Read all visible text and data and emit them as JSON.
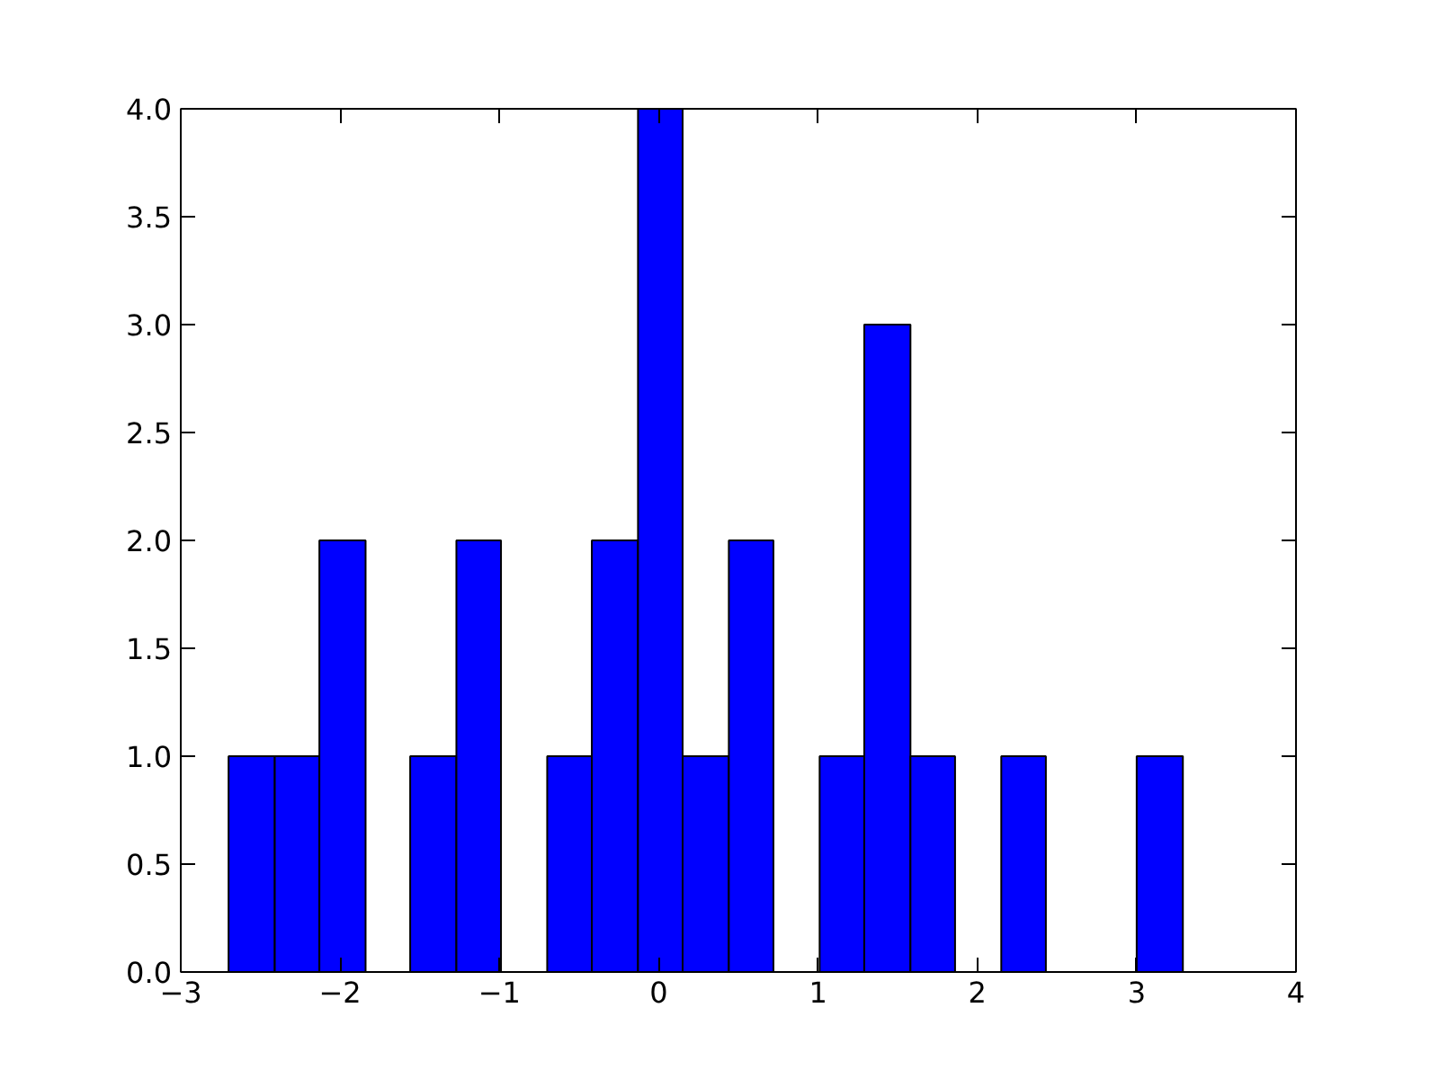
{
  "chart_data": {
    "type": "histogram",
    "bins": [
      -2.7,
      -2.41,
      -2.13,
      -1.84,
      -1.56,
      -1.27,
      -0.99,
      -0.7,
      -0.42,
      -0.13,
      0.15,
      0.44,
      0.72,
      1.01,
      1.29,
      1.58,
      1.86,
      2.15,
      2.43,
      3.0,
      3.29
    ],
    "values": [
      1,
      1,
      2,
      0,
      1,
      2,
      0,
      1,
      2,
      4,
      1,
      2,
      0,
      1,
      3,
      1,
      0,
      1,
      0,
      1
    ],
    "color": "#0000ff",
    "xlim": [
      -3,
      4
    ],
    "xticks": [
      -3,
      -2,
      -1,
      0,
      1,
      2,
      3,
      4
    ],
    "ylim": [
      0,
      4
    ],
    "yticks": [
      {
        "value": 0,
        "label": "0.0"
      },
      {
        "value": 0.5,
        "label": "0.5"
      },
      {
        "value": 1,
        "label": "1.0"
      },
      {
        "value": 1.5,
        "label": "1.5"
      },
      {
        "value": 2,
        "label": "2.0"
      },
      {
        "value": 2.5,
        "label": "2.5"
      },
      {
        "value": 3,
        "label": "3.0"
      },
      {
        "value": 3.5,
        "label": "3.5"
      },
      {
        "value": 4,
        "label": "4.0"
      }
    ],
    "grid": false
  }
}
